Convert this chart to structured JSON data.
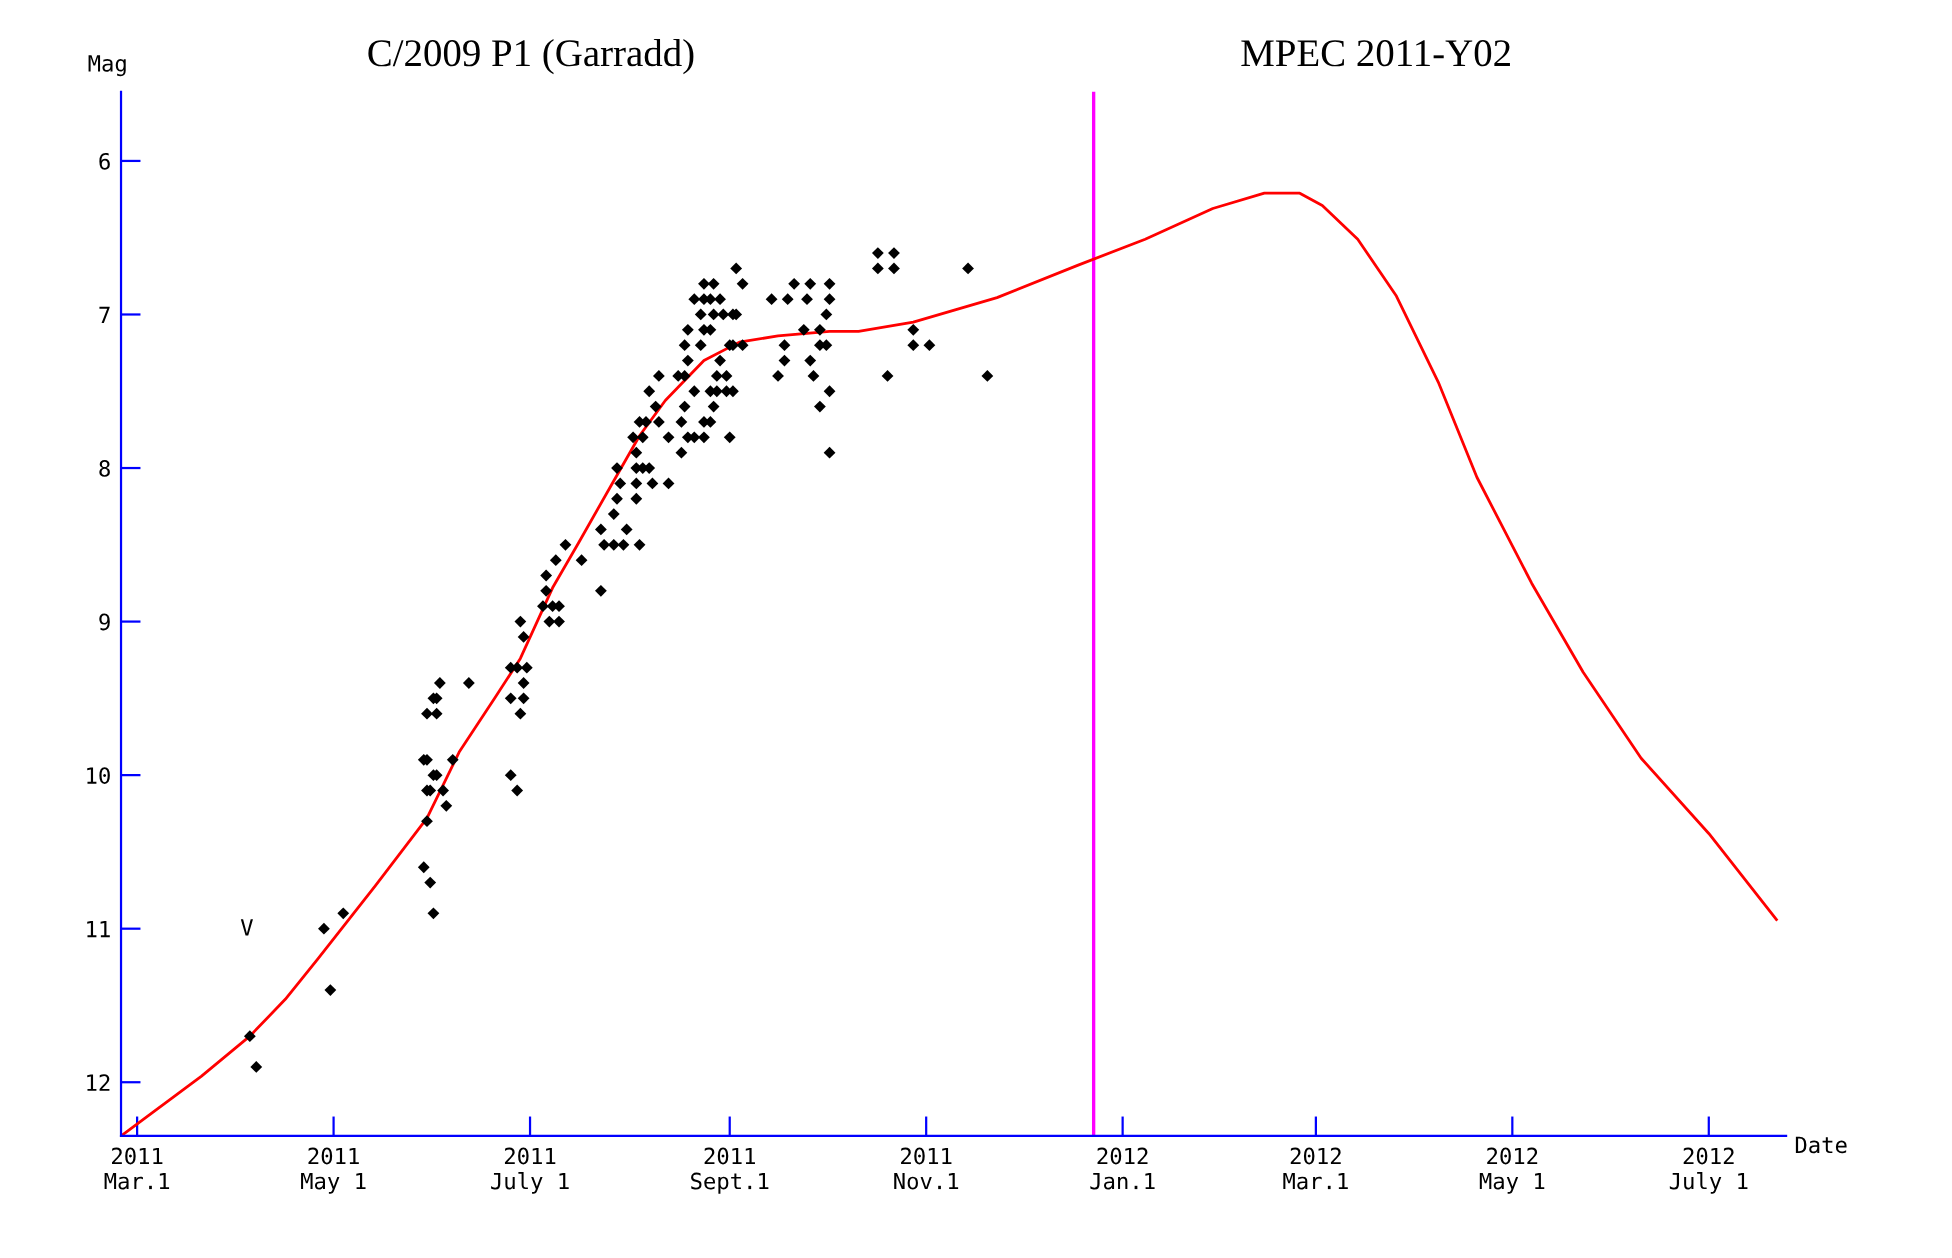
{
  "chart_data": {
    "type": "scatter",
    "title": "C/2009 P1 (Garradd)",
    "subtitle": "MPEC 2011-Y02",
    "xlabel": "Date",
    "ylabel": "Mag",
    "xlim": [
      "2011-02-24",
      "2012-07-25"
    ],
    "ylim": [
      12.35,
      5.55
    ],
    "xticks": [
      {
        "value": "2011-03-01",
        "label": "2011\nMar.1"
      },
      {
        "value": "2011-05-01",
        "label": "2011\nMay 1"
      },
      {
        "value": "2011-07-01",
        "label": "2011\nJuly 1"
      },
      {
        "value": "2011-09-01",
        "label": "2011\nSept.1"
      },
      {
        "value": "2011-11-01",
        "label": "2011\nNov.1"
      },
      {
        "value": "2012-01-01",
        "label": "2012\nJan.1"
      },
      {
        "value": "2012-03-01",
        "label": "2012\nMar.1"
      },
      {
        "value": "2012-05-01",
        "label": "2012\nMay 1"
      },
      {
        "value": "2012-07-01",
        "label": "2012\nJuly 1"
      }
    ],
    "yticks": [
      6,
      7,
      8,
      9,
      10,
      11,
      12
    ],
    "grid": false,
    "legend": false,
    "ref_lines": [
      {
        "axis": "x",
        "value": "2011-12-23",
        "color": "#ff00ff"
      }
    ],
    "annotations": [
      "V"
    ],
    "series": [
      {
        "color": "#000000",
        "marker": "diamond",
        "x": [
          "2011-04-05",
          "2011-04-07",
          "2011-04-28",
          "2011-04-30",
          "2011-05-04",
          "2011-05-29",
          "2011-05-30",
          "2011-05-29",
          "2011-05-30",
          "2011-05-30",
          "2011-05-31",
          "2011-05-30",
          "2011-05-31",
          "2011-06-01",
          "2011-06-01",
          "2011-06-02",
          "2011-06-02",
          "2011-06-03",
          "2011-06-07",
          "2011-06-01",
          "2011-06-02",
          "2011-06-04",
          "2011-06-05",
          "2011-06-12",
          "2011-06-25",
          "2011-06-27",
          "2011-06-30",
          "2011-06-29",
          "2011-06-25",
          "2011-06-29",
          "2011-06-28",
          "2011-06-25",
          "2011-06-27",
          "2011-06-28",
          "2011-07-07",
          "2011-07-10",
          "2011-06-29",
          "2011-07-05",
          "2011-07-08",
          "2011-07-10",
          "2011-07-06",
          "2011-07-23",
          "2011-07-06",
          "2011-07-09",
          "2011-07-17",
          "2011-07-12",
          "2011-07-24",
          "2011-07-27",
          "2011-07-30",
          "2011-08-04",
          "2011-07-23",
          "2011-07-31",
          "2011-07-27",
          "2011-07-28",
          "2011-08-03",
          "2011-07-29",
          "2011-08-03",
          "2011-08-08",
          "2011-08-13",
          "2011-07-28",
          "2011-08-03",
          "2011-08-05",
          "2011-08-07",
          "2011-08-03",
          "2011-08-17",
          "2011-10-02",
          "2011-08-02",
          "2011-08-05",
          "2011-08-13",
          "2011-08-19",
          "2011-08-21",
          "2011-08-24",
          "2011-09-01",
          "2011-08-04",
          "2011-08-06",
          "2011-08-10",
          "2011-08-17",
          "2011-08-24",
          "2011-08-26",
          "2011-08-09",
          "2011-08-18",
          "2011-08-27",
          "2011-09-29",
          "2011-08-07",
          "2011-08-21",
          "2011-08-26",
          "2011-08-28",
          "2011-08-31",
          "2011-09-02",
          "2011-10-02",
          "2011-08-10",
          "2011-08-16",
          "2011-08-18",
          "2011-08-28",
          "2011-08-31",
          "2011-09-16",
          "2011-09-27",
          "2011-10-20",
          "2011-11-20",
          "2011-08-19",
          "2011-08-29",
          "2011-09-18",
          "2011-09-26",
          "2011-08-18",
          "2011-08-23",
          "2011-09-01",
          "2011-09-02",
          "2011-09-05",
          "2011-09-18",
          "2011-09-29",
          "2011-10-01",
          "2011-10-28",
          "2011-11-02",
          "2011-08-19",
          "2011-08-24",
          "2011-08-26",
          "2011-09-24",
          "2011-09-29",
          "2011-10-28",
          "2011-08-23",
          "2011-08-27",
          "2011-08-30",
          "2011-09-02",
          "2011-09-03",
          "2011-10-01",
          "2011-08-21",
          "2011-08-24",
          "2011-08-26",
          "2011-08-29",
          "2011-09-14",
          "2011-09-19",
          "2011-09-25",
          "2011-10-02",
          "2011-08-24",
          "2011-08-27",
          "2011-09-05",
          "2011-09-21",
          "2011-09-26",
          "2011-10-02",
          "2011-09-03",
          "2011-10-17",
          "2011-10-22",
          "2011-11-14",
          "2011-10-17",
          "2011-10-22"
        ],
        "values": [
          11.7,
          11.9,
          11.0,
          11.4,
          10.9,
          9.9,
          9.9,
          10.6,
          10.3,
          10.1,
          10.1,
          9.6,
          10.7,
          10.9,
          9.5,
          9.5,
          9.6,
          9.4,
          9.9,
          10.0,
          10.0,
          10.1,
          10.2,
          9.4,
          9.3,
          9.3,
          9.3,
          9.4,
          9.5,
          9.5,
          9.6,
          10.0,
          10.1,
          9.0,
          9.0,
          9.0,
          9.1,
          8.9,
          8.9,
          8.9,
          8.8,
          8.8,
          8.7,
          8.6,
          8.6,
          8.5,
          8.5,
          8.5,
          8.5,
          8.5,
          8.4,
          8.4,
          8.3,
          8.2,
          8.2,
          8.1,
          8.1,
          8.1,
          8.1,
          8.0,
          8.0,
          8.0,
          8.0,
          7.9,
          7.9,
          7.9,
          7.8,
          7.8,
          7.8,
          7.8,
          7.8,
          7.8,
          7.8,
          7.7,
          7.7,
          7.7,
          7.7,
          7.7,
          7.7,
          7.6,
          7.6,
          7.6,
          7.6,
          7.5,
          7.5,
          7.5,
          7.5,
          7.5,
          7.5,
          7.5,
          7.4,
          7.4,
          7.4,
          7.4,
          7.4,
          7.4,
          7.4,
          7.4,
          7.4,
          7.3,
          7.3,
          7.3,
          7.3,
          7.2,
          7.2,
          7.2,
          7.2,
          7.2,
          7.2,
          7.2,
          7.2,
          7.2,
          7.2,
          7.1,
          7.1,
          7.1,
          7.1,
          7.1,
          7.1,
          7.0,
          7.0,
          7.0,
          7.0,
          7.0,
          7.0,
          6.9,
          6.9,
          6.9,
          6.9,
          6.9,
          6.9,
          6.9,
          6.9,
          6.8,
          6.8,
          6.8,
          6.8,
          6.8,
          6.8,
          6.7,
          6.7,
          6.7,
          6.7,
          6.6,
          6.6
        ]
      },
      {
        "type": "line",
        "color": "#ff0000",
        "marker": "none",
        "line_style": "solid",
        "x": [
          "2011-02-24",
          "2011-03-21",
          "2011-04-05",
          "2011-04-16",
          "2011-04-26",
          "2011-05-14",
          "2011-05-30",
          "2011-06-09",
          "2011-06-20",
          "2011-06-28",
          "2011-07-08",
          "2011-07-16",
          "2011-07-26",
          "2011-08-04",
          "2011-08-12",
          "2011-08-24",
          "2011-09-04",
          "2011-09-16",
          "2011-10-02",
          "2011-10-11",
          "2011-10-28",
          "2011-11-10",
          "2011-11-23",
          "2011-12-18",
          "2012-01-08",
          "2012-01-29",
          "2012-02-14",
          "2012-02-25",
          "2012-03-03",
          "2012-03-14",
          "2012-03-26",
          "2012-04-08",
          "2012-04-20",
          "2012-05-07",
          "2012-05-23",
          "2012-06-10",
          "2012-07-01",
          "2012-07-22"
        ],
        "values": [
          12.35,
          11.96,
          11.7,
          11.46,
          11.2,
          10.72,
          10.28,
          9.85,
          9.5,
          9.24,
          8.78,
          8.49,
          8.12,
          7.79,
          7.56,
          7.3,
          7.18,
          7.14,
          7.11,
          7.11,
          7.05,
          6.97,
          6.89,
          6.68,
          6.51,
          6.31,
          6.21,
          6.21,
          6.29,
          6.51,
          6.88,
          7.44,
          8.06,
          8.75,
          9.33,
          9.89,
          10.38,
          10.94
        ]
      }
    ]
  }
}
